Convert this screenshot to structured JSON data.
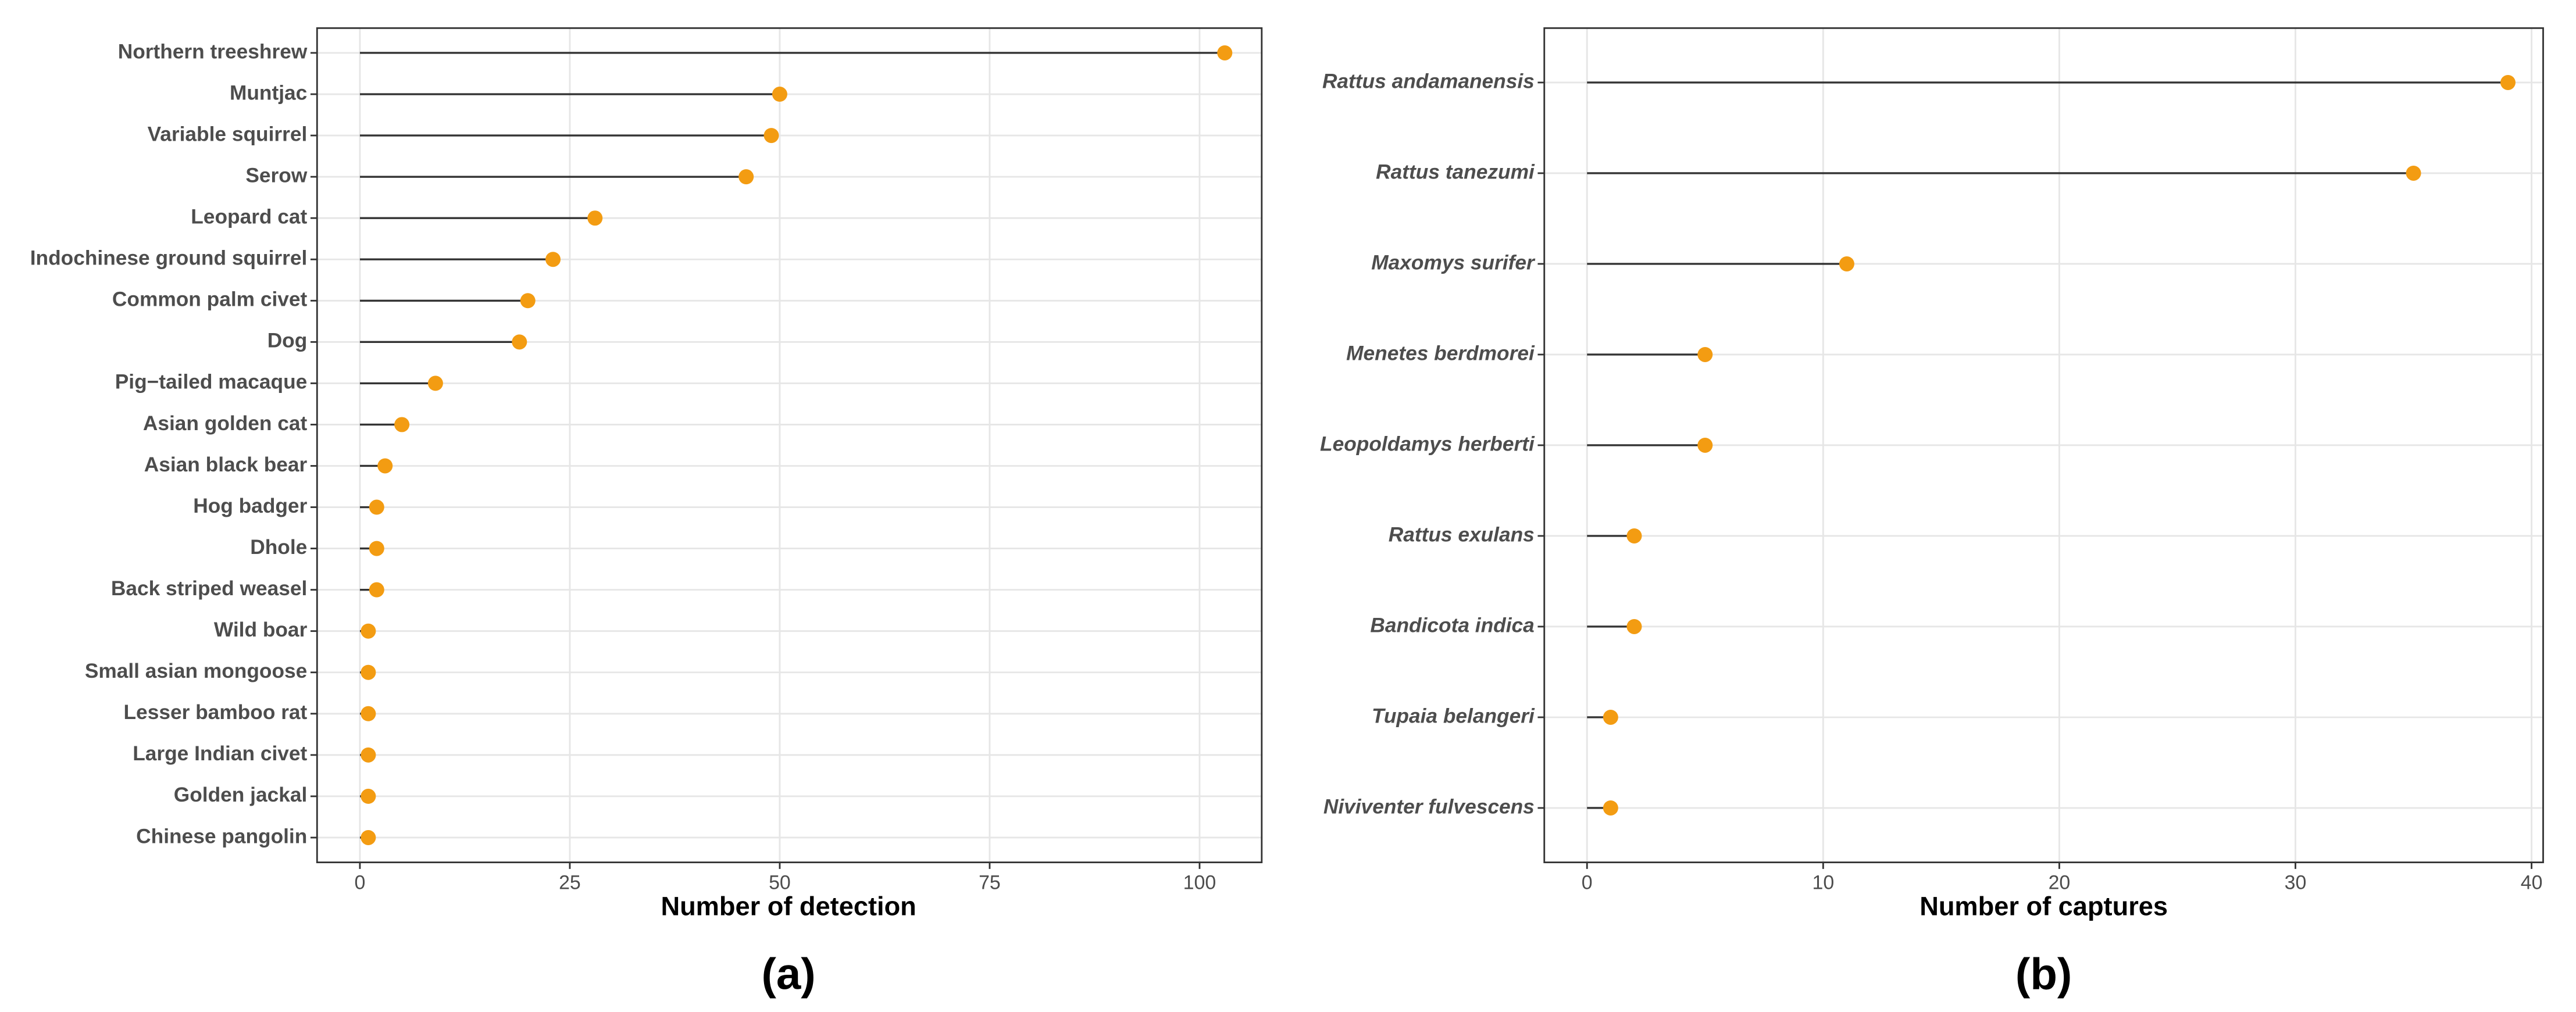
{
  "chart_data": [
    {
      "type": "lollipop",
      "panel_label": "(a)",
      "x_label": "Number of detection",
      "categories": [
        "Northern treeshrew",
        "Muntjac",
        "Variable squirrel",
        "Serow",
        "Leopard cat",
        "Indochinese ground squirrel",
        "Common palm civet",
        "Dog",
        "Pig−tailed macaque",
        "Asian golden cat",
        "Asian black bear",
        "Hog badger",
        "Dhole",
        "Back striped weasel",
        "Wild boar",
        "Small asian mongoose",
        "Lesser bamboo rat",
        "Large Indian civet",
        "Golden jackal",
        "Chinese pangolin"
      ],
      "values": [
        103,
        50,
        49,
        46,
        28,
        23,
        20,
        19,
        9,
        5,
        3,
        2,
        2,
        2,
        1,
        1,
        1,
        1,
        1,
        1
      ],
      "color": "#f39c12",
      "xlim": [
        -5.1,
        107.4
      ],
      "xticks": [
        0,
        25,
        50,
        75,
        100
      ],
      "grid": true,
      "italic_categories": false
    },
    {
      "type": "lollipop",
      "panel_label": "(b)",
      "x_label": "Number of captures",
      "categories": [
        "Rattus andamanensis",
        "Rattus tanezumi",
        "Maxomys surifer",
        "Menetes berdmorei",
        "Leopoldamys herberti",
        "Rattus exulans",
        "Bandicota indica",
        "Tupaia belangeri",
        "Niviventer fulvescens"
      ],
      "values": [
        39,
        35,
        11,
        5,
        5,
        2,
        2,
        1,
        1
      ],
      "color": "#f39c12",
      "xlim": [
        -1.81,
        40.49
      ],
      "xticks": [
        0,
        10,
        20,
        30,
        40
      ],
      "grid": true,
      "italic_categories": true
    }
  ]
}
